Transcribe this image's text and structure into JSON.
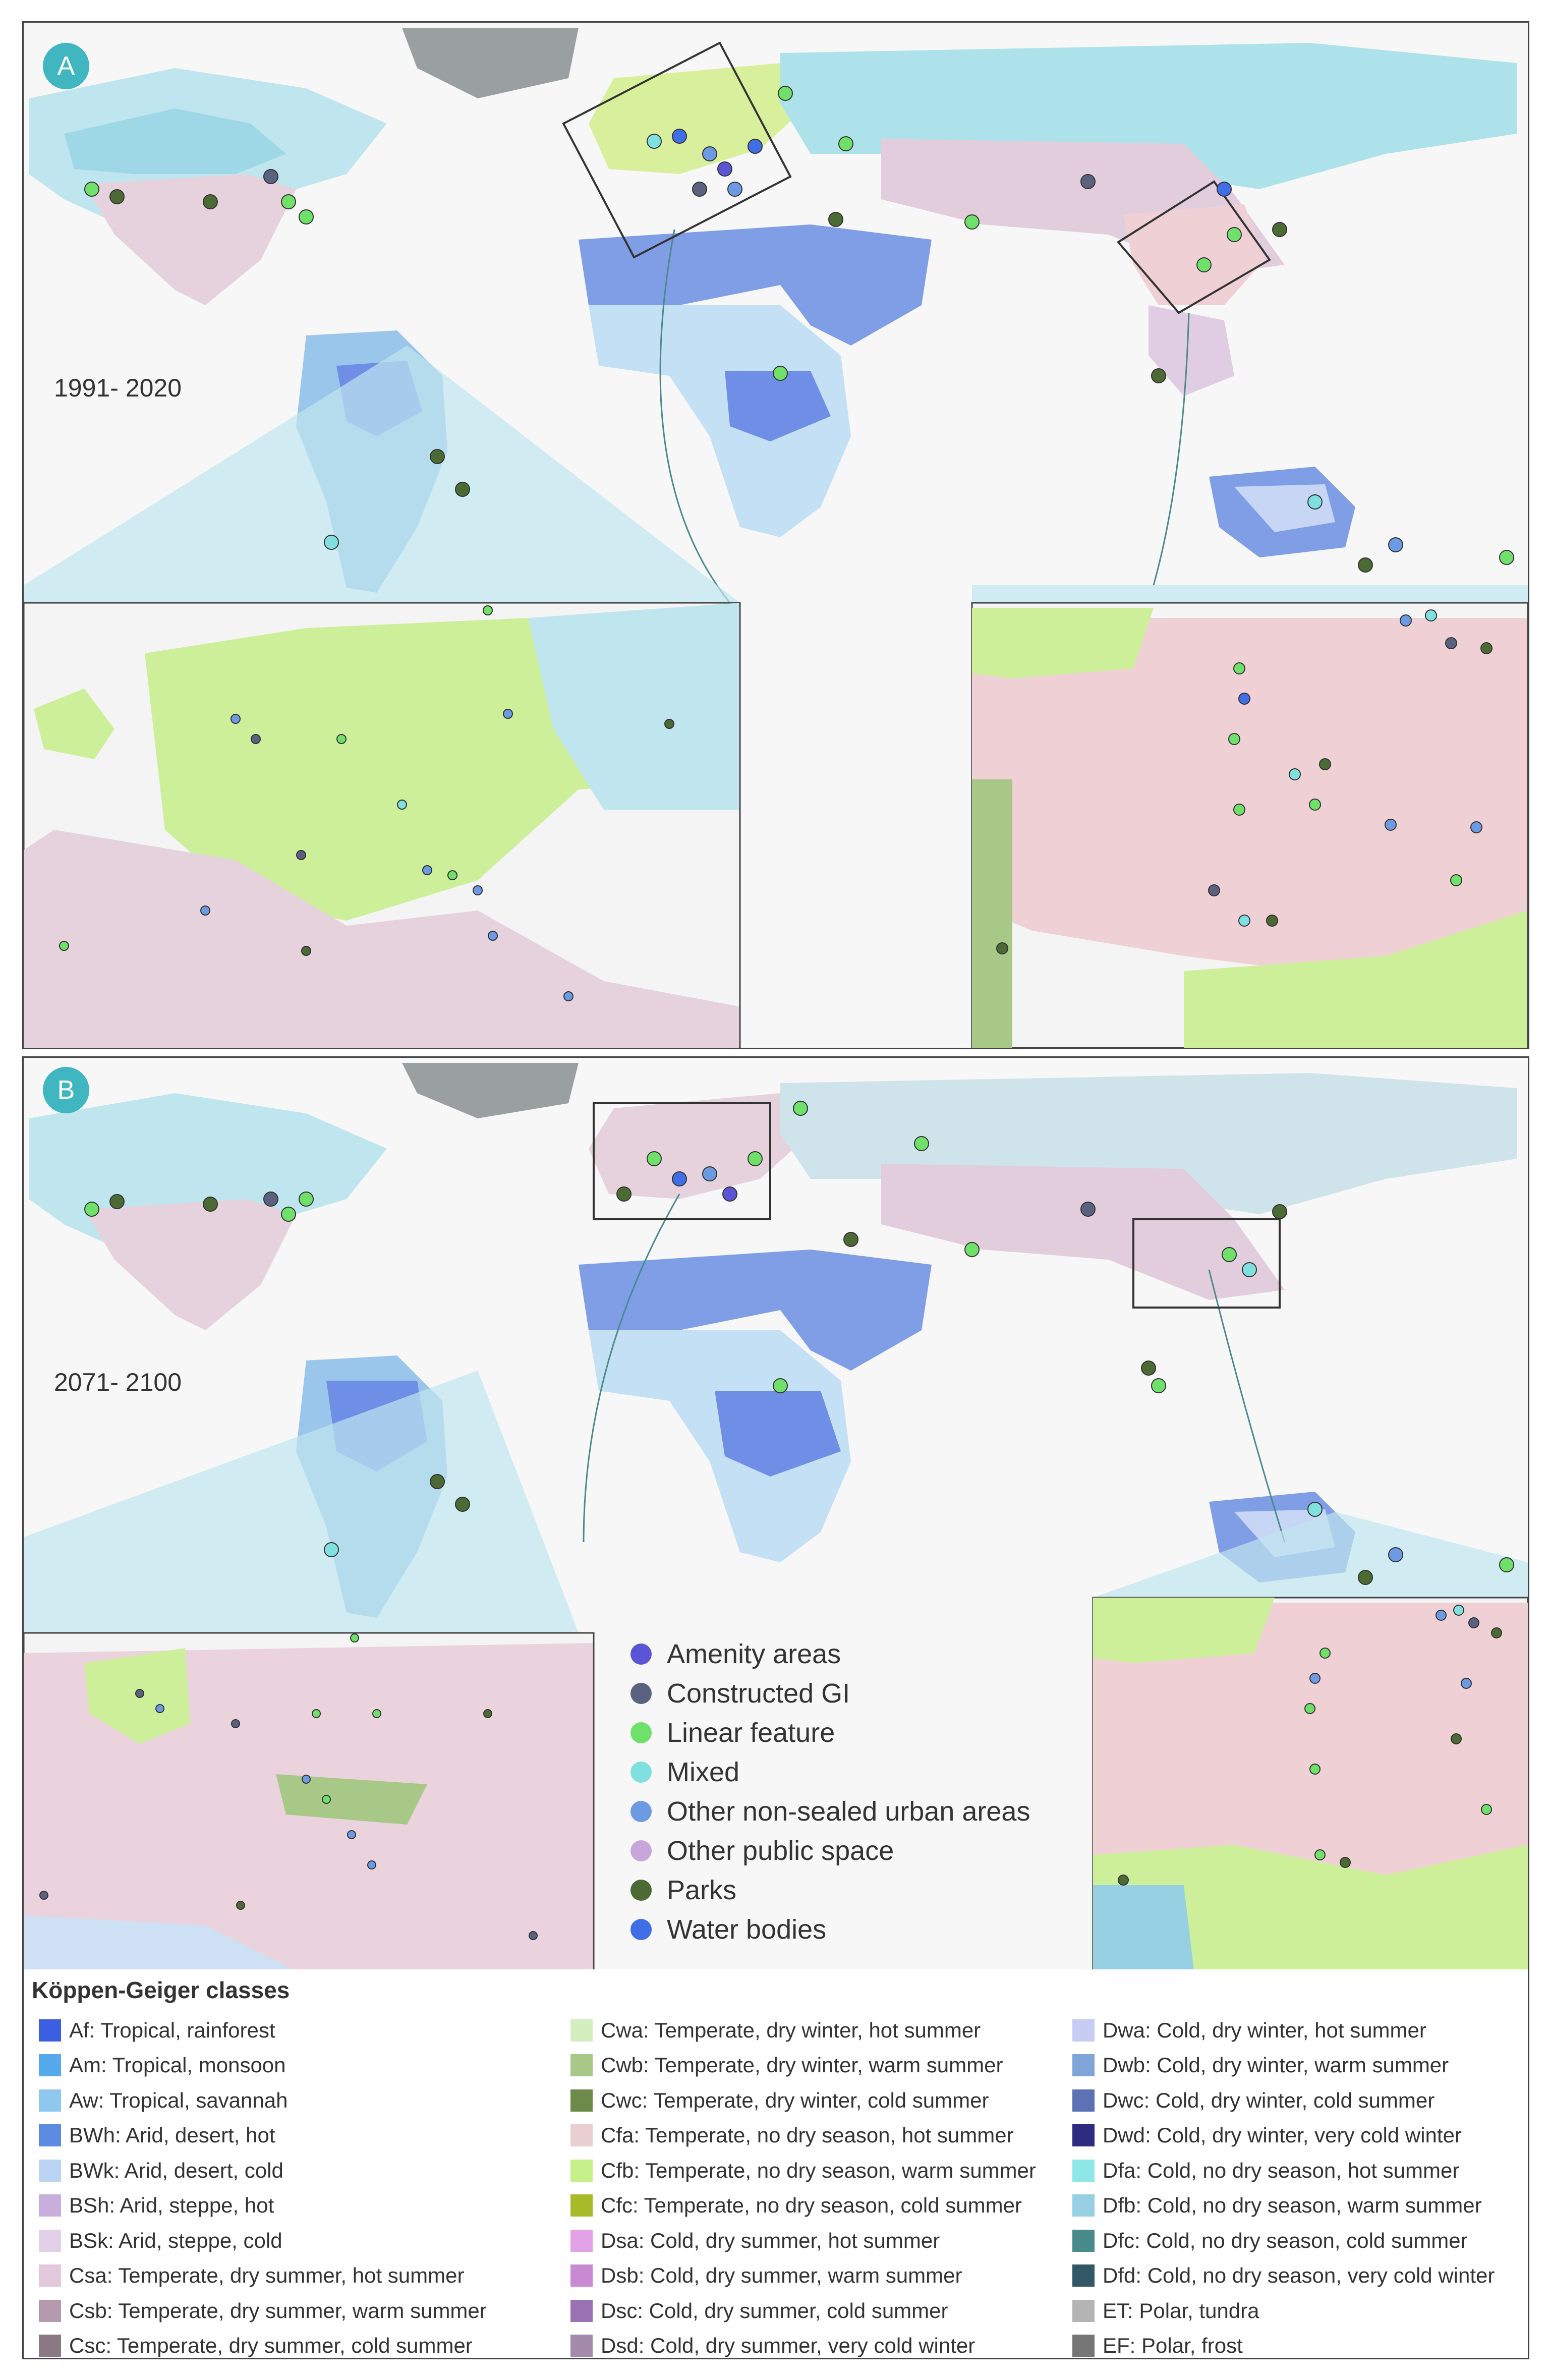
{
  "panels": [
    {
      "badge": "A",
      "period": "1991- 2020"
    },
    {
      "badge": "B",
      "period": "2071- 2100"
    }
  ],
  "category_legend": [
    {
      "label": "Amenity areas",
      "color": "#5b55d6"
    },
    {
      "label": "Constructed GI",
      "color": "#5a6280"
    },
    {
      "label": "Linear feature",
      "color": "#6fe06a"
    },
    {
      "label": "Mixed",
      "color": "#7fe0df"
    },
    {
      "label": "Other non-sealed urban areas",
      "color": "#6c9be4"
    },
    {
      "label": "Other public space",
      "color": "#c8a6dc"
    },
    {
      "label": "Parks",
      "color": "#4c6a34"
    },
    {
      "label": "Water bodies",
      "color": "#3f6ee6"
    }
  ],
  "koppen_legend": {
    "title": "Köppen-Geiger classes",
    "columns": [
      [
        {
          "label": "Af: Tropical, rainforest",
          "color": "#3c5ee0"
        },
        {
          "label": "Am: Tropical, monsoon",
          "color": "#56aaec"
        },
        {
          "label": "Aw: Tropical, savannah",
          "color": "#8ec8ee"
        },
        {
          "label": "BWh: Arid, desert, hot",
          "color": "#5c8ce2"
        },
        {
          "label": "BWk: Arid, desert, cold",
          "color": "#bcd4f4"
        },
        {
          "label": "BSh: Arid, steppe, hot",
          "color": "#c8aedc"
        },
        {
          "label": "BSk: Arid, steppe, cold",
          "color": "#e2d0e8"
        },
        {
          "label": "Csa: Temperate, dry summer, hot summer",
          "color": "#e2c8da"
        },
        {
          "label": "Csb: Temperate, dry summer, warm summer",
          "color": "#b49aac"
        },
        {
          "label": "Csc: Temperate, dry summer, cold summer",
          "color": "#8a7882"
        }
      ],
      [
        {
          "label": "Cwa: Temperate, dry winter, hot summer",
          "color": "#d4eec0"
        },
        {
          "label": "Cwb: Temperate, dry winter, warm summer",
          "color": "#a8c888"
        },
        {
          "label": "Cwc: Temperate, dry winter, cold summer",
          "color": "#6e8a4a"
        },
        {
          "label": "Cfa: Temperate, no dry season, hot summer",
          "color": "#eacfd2"
        },
        {
          "label": "Cfb: Temperate, no dry season, warm summer",
          "color": "#c6f08a"
        },
        {
          "label": "Cfc: Temperate, no dry season, cold summer",
          "color": "#a6ba2a"
        },
        {
          "label": "Dsa: Cold, dry summer, hot summer",
          "color": "#e2a2e6"
        },
        {
          "label": "Dsb: Cold, dry summer, warm summer",
          "color": "#c88ad2"
        },
        {
          "label": "Dsc: Cold, dry summer, cold summer",
          "color": "#9a72b4"
        },
        {
          "label": "Dsd: Cold, dry summer, very cold winter",
          "color": "#a48aaa"
        }
      ],
      [
        {
          "label": "Dwa: Cold, dry winter, hot summer",
          "color": "#c6ccf4"
        },
        {
          "label": "Dwb: Cold, dry winter, warm summer",
          "color": "#7ea4d8"
        },
        {
          "label": "Dwc: Cold, dry winter, cold summer",
          "color": "#5c72b4"
        },
        {
          "label": "Dwd: Cold, dry winter, very cold winter",
          "color": "#2e2c80"
        },
        {
          "label": "Dfa: Cold, no dry season, hot summer",
          "color": "#8ee6e6"
        },
        {
          "label": "Dfb: Cold, no dry season, warm summer",
          "color": "#96d0e2"
        },
        {
          "label": "Dfc: Cold, no dry season, cold summer",
          "color": "#4a8a8a"
        },
        {
          "label": "Dfd: Cold, no dry season, very cold winter",
          "color": "#325868"
        },
        {
          "label": "ET: Polar, tundra",
          "color": "#b4b4b4"
        },
        {
          "label": "EF: Polar, frost",
          "color": "#767676"
        }
      ]
    ]
  }
}
